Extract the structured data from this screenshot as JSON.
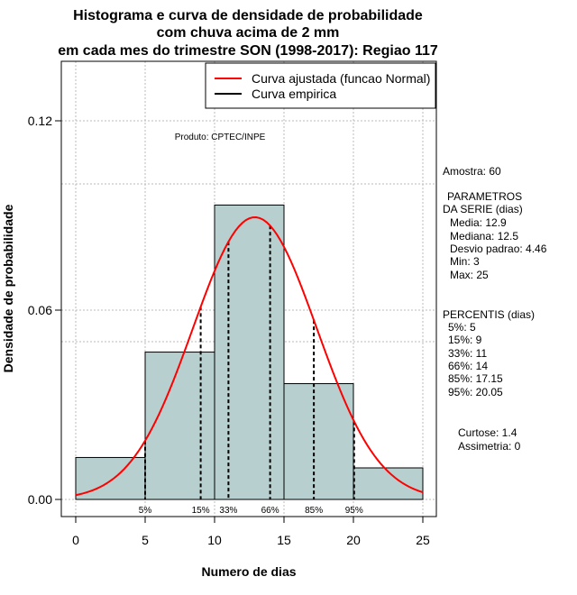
{
  "chart_data": {
    "type": "histogram",
    "title_lines": [
      "Histograma e curva de densidade de probabilidade",
      "com chuva acima de 2 mm",
      "em cada mes do trimestre SON (1998-2017): Regiao 117"
    ],
    "xlabel": "Numero de dias",
    "ylabel": "Densidade de probabilidade",
    "xlim": [
      -1,
      26
    ],
    "ylim": [
      0,
      0.14
    ],
    "x_ticks": [
      "0",
      "5",
      "10",
      "15",
      "20",
      "25"
    ],
    "x_tick_values": [
      0,
      5,
      10,
      15,
      20,
      25
    ],
    "y_ticks": [
      "0.00",
      "0.06",
      "0.12"
    ],
    "y_tick_values": [
      0.0,
      0.06,
      0.12
    ],
    "grid_x": [
      0,
      5,
      10,
      15,
      20,
      25
    ],
    "grid_y": [
      0.0,
      0.05,
      0.06,
      0.1,
      0.12
    ],
    "bins": [
      {
        "start": 0,
        "end": 5,
        "density": 0.0133
      },
      {
        "start": 5,
        "end": 10,
        "density": 0.0467
      },
      {
        "start": 10,
        "end": 15,
        "density": 0.0933
      },
      {
        "start": 15,
        "end": 20,
        "density": 0.0367
      },
      {
        "start": 20,
        "end": 25,
        "density": 0.01
      }
    ],
    "normal_fit": {
      "mean": 12.9,
      "sd": 4.46
    },
    "percentiles": [
      {
        "label": "5%",
        "x": 5
      },
      {
        "label": "15%",
        "x": 9
      },
      {
        "label": "33%",
        "x": 11
      },
      {
        "label": "66%",
        "x": 14
      },
      {
        "label": "85%",
        "x": 17.15
      },
      {
        "label": "95%",
        "x": 20.05
      }
    ],
    "legend": [
      {
        "label": "Curva ajustada (funcao Normal)",
        "color": "#ff0000"
      },
      {
        "label": "Curva empirica",
        "color": "#000000"
      }
    ],
    "product_label": "Produto: CPTEC/INPE",
    "bar_color": "#b7cfcf",
    "curve_color": "#ff0000"
  },
  "stats": {
    "amostra": "Amostra: 60",
    "parametros_title": "PARAMETROS",
    "parametros_sub": "DA SERIE (dias)",
    "parametros": [
      "Media: 12.9",
      "Mediana: 12.5",
      "Desvio padrao: 4.46",
      "Min: 3",
      "Max: 25"
    ],
    "percentis_title": "PERCENTIS (dias)",
    "percentis": [
      "5%: 5",
      "15%: 9",
      "33%: 11",
      "66%: 14",
      "85%: 17.15",
      "95%: 20.05"
    ],
    "curtose": "Curtose: 1.4",
    "assimetria": "Assimetria: 0"
  }
}
